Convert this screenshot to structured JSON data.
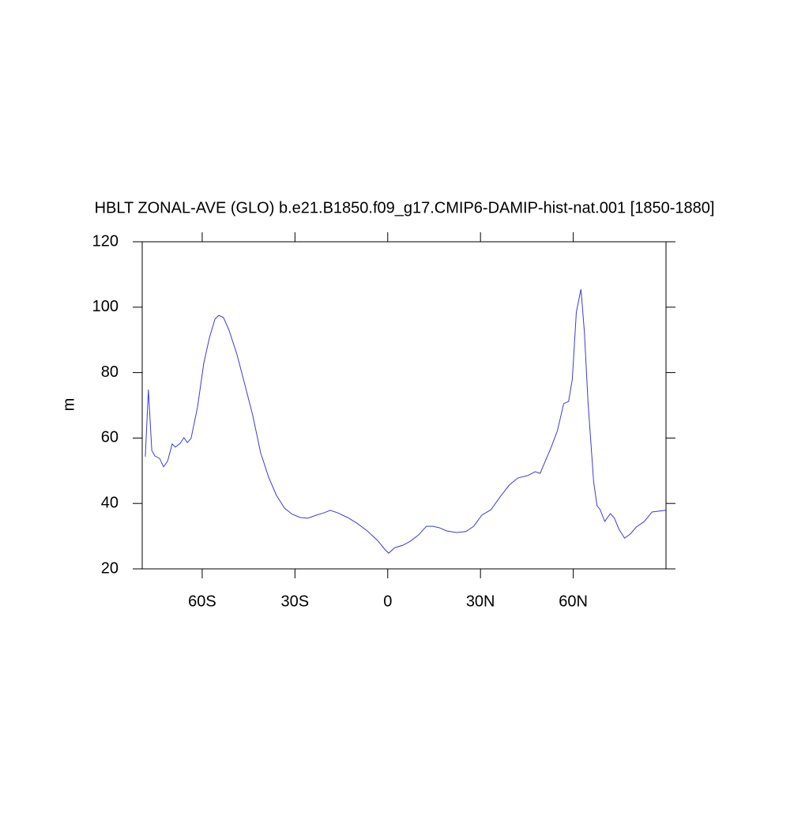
{
  "chart_data": {
    "type": "line",
    "title": "HBLT ZONAL-AVE (GLO) b.e21.B1850.f09_g17.CMIP6-DAMIP-hist-nat.001 [1850-1880]",
    "y_label": "m",
    "x": [
      -78.4,
      -77.4,
      -76.3,
      -75.3,
      -73.8,
      -72.5,
      -71.2,
      -69.7,
      -68.7,
      -67.1,
      -65.9,
      -64.8,
      -63.6,
      -61.5,
      -59.5,
      -57.7,
      -55.9,
      -54.6,
      -53.1,
      -51.3,
      -48.8,
      -46.2,
      -43.7,
      -41.1,
      -38.5,
      -36.0,
      -33.4,
      -30.9,
      -28.3,
      -25.8,
      -23.2,
      -20.7,
      -18.6,
      -16.1,
      -13.0,
      -10.0,
      -6.6,
      -3.3,
      -0.8,
      0.3,
      2.3,
      4.9,
      7.4,
      10.0,
      12.5,
      14.6,
      16.6,
      19.1,
      22.2,
      25.3,
      27.8,
      30.4,
      33.4,
      36.5,
      39.3,
      42.1,
      45.2,
      47.7,
      49.3,
      50.8,
      52.8,
      54.9,
      56.9,
      58.5,
      59.7,
      61.0,
      62.5,
      63.6,
      64.8,
      66.6,
      67.7,
      68.7,
      70.2,
      72.0,
      73.3,
      74.8,
      76.6,
      78.4,
      80.4,
      83.0,
      85.5,
      89.9
    ],
    "series": [
      {
        "color": "#3b3bd6",
        "values": [
          54.3,
          74.8,
          56.2,
          54.5,
          53.8,
          51.2,
          52.9,
          58.2,
          57.2,
          58.4,
          60.1,
          58.6,
          59.9,
          69.5,
          82.8,
          90.5,
          96.3,
          97.5,
          96.8,
          92.9,
          85.7,
          76.3,
          67.1,
          55.5,
          48.0,
          42.5,
          38.6,
          36.7,
          35.7,
          35.5,
          36.4,
          37.1,
          37.9,
          37.1,
          35.7,
          34.0,
          31.6,
          28.7,
          25.8,
          24.8,
          26.5,
          27.2,
          28.5,
          30.4,
          33.0,
          33.0,
          32.6,
          31.6,
          31.1,
          31.4,
          33.0,
          36.4,
          38.1,
          42.2,
          45.6,
          47.8,
          48.5,
          49.7,
          49.2,
          52.6,
          57.0,
          62.3,
          70.5,
          71.2,
          78.0,
          98.5,
          105.5,
          92.5,
          70.7,
          46.6,
          39.3,
          38.1,
          34.5,
          36.9,
          35.5,
          32.1,
          29.4,
          30.6,
          32.8,
          34.5,
          37.4,
          37.9
        ]
      }
    ],
    "xlim": [
      -79.4,
      90
    ],
    "xticks": [
      {
        "value": -60,
        "label": "60S"
      },
      {
        "value": -30,
        "label": "30S"
      },
      0,
      {
        "value": 30,
        "label": "30N"
      },
      {
        "value": 60,
        "label": "60N"
      }
    ],
    "ylim": [
      20,
      120
    ],
    "yticks": [
      20,
      40,
      60,
      80,
      100,
      120
    ],
    "grid": false
  }
}
